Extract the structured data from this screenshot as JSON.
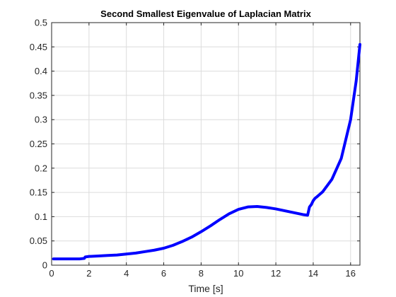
{
  "chart_data": {
    "type": "line",
    "title": "Second Smallest Eigenvalue of Laplacian Matrix",
    "xlabel": "Time [s]",
    "ylabel": "",
    "xlim": [
      0,
      16.5
    ],
    "ylim": [
      0,
      0.5
    ],
    "xticks": [
      "0",
      "2",
      "4",
      "6",
      "8",
      "10",
      "12",
      "14",
      "16"
    ],
    "yticks": [
      "0",
      "0.05",
      "0.1",
      "0.15",
      "0.2",
      "0.25",
      "0.3",
      "0.35",
      "0.4",
      "0.45",
      "0.5"
    ],
    "grid": true,
    "line_color": "#0000ff",
    "series": [
      {
        "x": [
          0.1,
          0.5,
          1.0,
          1.5,
          1.75,
          1.8,
          2.0,
          2.5,
          3.0,
          3.5,
          4.0,
          4.5,
          5.0,
          5.5,
          6.0,
          6.5,
          7.0,
          7.5,
          8.0,
          8.5,
          9.0,
          9.5,
          10.0,
          10.5,
          11.0,
          11.5,
          12.0,
          12.5,
          13.0,
          13.5,
          13.7,
          13.8,
          13.9,
          14.0,
          14.1,
          14.2,
          14.5,
          15.0,
          15.5,
          16.0,
          16.3,
          16.5
        ],
        "y": [
          0.013,
          0.013,
          0.013,
          0.013,
          0.014,
          0.017,
          0.018,
          0.019,
          0.02,
          0.021,
          0.023,
          0.025,
          0.028,
          0.031,
          0.035,
          0.041,
          0.049,
          0.058,
          0.069,
          0.081,
          0.094,
          0.106,
          0.115,
          0.12,
          0.121,
          0.119,
          0.116,
          0.112,
          0.108,
          0.104,
          0.103,
          0.12,
          0.125,
          0.133,
          0.138,
          0.141,
          0.151,
          0.177,
          0.22,
          0.3,
          0.38,
          0.455
        ]
      }
    ]
  }
}
